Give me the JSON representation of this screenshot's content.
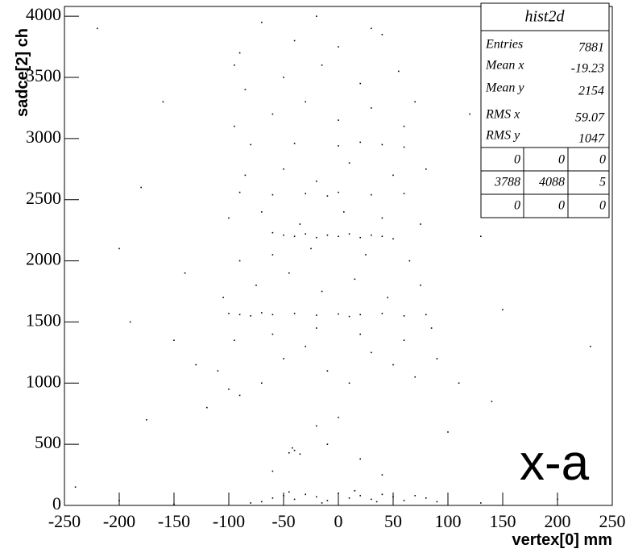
{
  "chart_data": {
    "type": "scatter",
    "x_label": "vertex[0] mm",
    "y_label": "sadce[2] ch",
    "overlay_text": "x-a",
    "xlim": [
      -250,
      250
    ],
    "ylim": [
      0,
      4080
    ],
    "xticks": [
      -250,
      -200,
      -150,
      -100,
      -50,
      0,
      50,
      100,
      150,
      200,
      250
    ],
    "yticks": [
      0,
      500,
      1000,
      1500,
      2000,
      2500,
      3000,
      3500,
      4000
    ],
    "color": "#000000",
    "x": [
      -60,
      -50,
      -40,
      -30,
      -20,
      -10,
      0,
      10,
      20,
      30,
      40,
      50,
      60,
      70,
      80,
      -70,
      -45,
      -15,
      15,
      35,
      -80,
      90,
      -150,
      130,
      -200,
      200,
      -45,
      -40,
      -35,
      -42,
      -10,
      20,
      -60,
      40,
      0,
      -20,
      -100,
      -90,
      -80,
      -60,
      -40,
      -20,
      0,
      20,
      40,
      60,
      80,
      -70,
      10,
      -50,
      -40,
      -30,
      -20,
      -10,
      0,
      10,
      20,
      30,
      40,
      -60,
      50,
      -90,
      -60,
      -30,
      0,
      30,
      60,
      -10,
      -80,
      -40,
      0,
      20,
      40,
      60,
      -110,
      -100,
      -90,
      -70,
      -50,
      -30,
      -10,
      10,
      30,
      50,
      70,
      90,
      -95,
      -60,
      -20,
      20,
      60,
      85,
      -105,
      -75,
      -45,
      -15,
      15,
      45,
      75,
      -90,
      -60,
      -25,
      25,
      65,
      -100,
      -70,
      -35,
      5,
      40,
      75,
      -85,
      -50,
      -20,
      10,
      50,
      80,
      -95,
      -60,
      -30,
      0,
      30,
      60,
      -85,
      -50,
      -15,
      20,
      55,
      -90,
      -40,
      0,
      40,
      -70,
      -20,
      30,
      -95,
      70,
      -220,
      -160,
      -180,
      -140,
      -190,
      -150,
      130,
      150,
      170,
      -240,
      140,
      -130,
      110,
      -120,
      230,
      -200,
      100,
      -175,
      180,
      120
    ],
    "values": [
      60,
      80,
      50,
      90,
      70,
      40,
      100,
      60,
      80,
      50,
      90,
      70,
      40,
      80,
      60,
      30,
      110,
      20,
      120,
      30,
      20,
      30,
      10,
      20,
      40,
      50,
      430,
      450,
      420,
      470,
      500,
      380,
      280,
      250,
      720,
      650,
      1570,
      1560,
      1550,
      1560,
      1570,
      1555,
      1565,
      1560,
      1570,
      1550,
      1560,
      1575,
      1545,
      2210,
      2200,
      2220,
      2190,
      2210,
      2200,
      2220,
      2190,
      2210,
      2200,
      2230,
      2180,
      2560,
      2540,
      2550,
      2560,
      2540,
      2550,
      2530,
      2950,
      2960,
      2940,
      2970,
      2950,
      2930,
      1100,
      950,
      900,
      1000,
      1200,
      1300,
      1100,
      1000,
      1250,
      1150,
      1050,
      1200,
      1350,
      1400,
      1450,
      1400,
      1350,
      1450,
      1700,
      1800,
      1900,
      1750,
      1850,
      1700,
      1800,
      2000,
      2050,
      2100,
      2050,
      2000,
      2350,
      2400,
      2300,
      2400,
      2350,
      2300,
      2700,
      2750,
      2650,
      2800,
      2700,
      2750,
      3100,
      3200,
      3300,
      3150,
      3250,
      3100,
      3400,
      3500,
      3600,
      3450,
      3550,
      3700,
      3800,
      3750,
      3850,
      3950,
      4000,
      3900,
      3600,
      3300,
      3900,
      3300,
      2600,
      1900,
      1500,
      1350,
      2200,
      1600,
      3600,
      150,
      850,
      1150,
      1000,
      800,
      1300,
      2100,
      600,
      700,
      2800,
      3200
    ],
    "stats": {
      "title": "hist2d",
      "rows": [
        {
          "label": "Entries",
          "value": 7881
        },
        {
          "label": "Mean x",
          "value": -19.23
        },
        {
          "label": "Mean y",
          "value": 2154
        },
        {
          "label": "RMS x",
          "value": 59.07
        },
        {
          "label": "RMS y",
          "value": 1047
        }
      ],
      "grid": [
        [
          0,
          0,
          0
        ],
        [
          3788,
          4088,
          5
        ],
        [
          0,
          0,
          0
        ]
      ]
    }
  }
}
